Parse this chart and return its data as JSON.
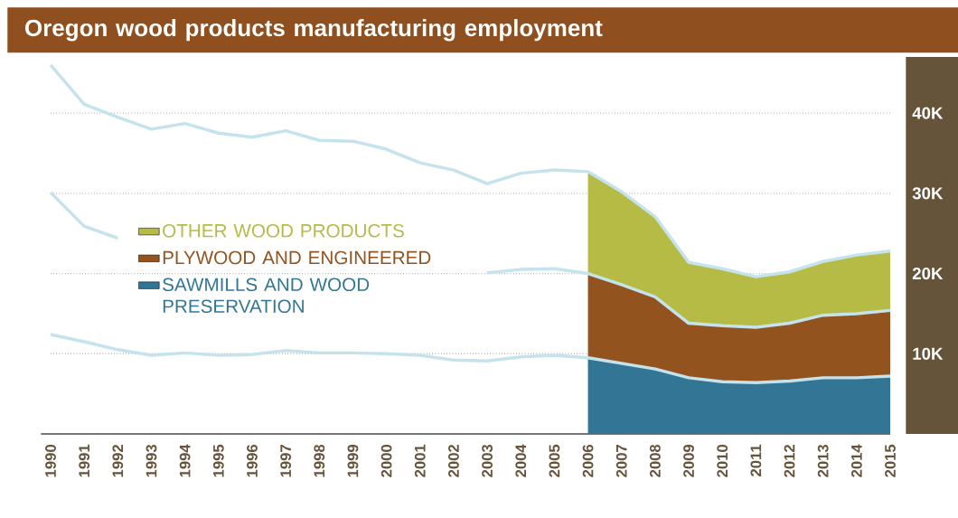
{
  "chart_data": {
    "type": "area",
    "title": "Oregon wood products manufacturing employment",
    "stacked": true,
    "x": [
      2006,
      2007,
      2008,
      2009,
      2010,
      2011,
      2012,
      2013,
      2014,
      2015
    ],
    "series": [
      {
        "name": "SAWMILLS AND WOOD PRESERVATION",
        "color": "#327595",
        "values": [
          9500,
          8800,
          8100,
          7000,
          6500,
          6400,
          6600,
          7000,
          7000,
          7200
        ]
      },
      {
        "name": "PLYWOOD AND ENGINEERED",
        "color": "#92531f",
        "values": [
          10500,
          9800,
          9000,
          6800,
          7000,
          6900,
          7200,
          7800,
          8000,
          8200
        ]
      },
      {
        "name": "OTHER WOOD PRODUCTS",
        "color": "#b5bb44",
        "values": [
          12700,
          11600,
          10000,
          7600,
          7100,
          6300,
          6400,
          6700,
          7300,
          7400
        ]
      },
      {
        "type": "line",
        "color": "#c5e3ec",
        "x": [
          1990,
          1991,
          1992,
          1993,
          1994,
          1995,
          1996,
          1997,
          1998,
          1999,
          2000,
          2001,
          2002,
          2003,
          2004,
          2005,
          2006,
          2007,
          2008,
          2009,
          2010,
          2011,
          2012,
          2013,
          2014,
          2015
        ],
        "values": [
          12400,
          11500,
          10500,
          9800,
          10100,
          9800,
          9900,
          10400,
          10100,
          10100,
          10000,
          9800,
          9200,
          9100,
          9600,
          9800,
          9500,
          8800,
          8100,
          7000,
          6500,
          6400,
          6600,
          7000,
          7000,
          7200
        ]
      },
      {
        "type": "line",
        "color": "#c5e3ec",
        "x": [
          1990,
          1991,
          1992,
          1993,
          1994,
          1995,
          1996,
          1997,
          1998,
          1999,
          2000,
          2001,
          2002,
          2003,
          2004,
          2005,
          2006,
          2007,
          2008,
          2009,
          2010,
          2011,
          2012,
          2013,
          2014,
          2015
        ],
        "values": [
          30100,
          25900,
          24400,
          null,
          null,
          null,
          null,
          null,
          null,
          null,
          null,
          null,
          null,
          20100,
          20500,
          20600,
          20000,
          18600,
          17100,
          13800,
          13500,
          13300,
          13800,
          14800,
          15000,
          15400
        ]
      },
      {
        "type": "line",
        "color": "#c5e3ec",
        "x": [
          1990,
          1991,
          1992,
          1993,
          1994,
          1995,
          1996,
          1997,
          1998,
          1999,
          2000,
          2001,
          2002,
          2003,
          2004,
          2005,
          2006,
          2007,
          2008,
          2009,
          2010,
          2011,
          2012,
          2013,
          2014,
          2015
        ],
        "values": [
          46000,
          41100,
          39500,
          38000,
          38700,
          37500,
          37000,
          37800,
          36600,
          36500,
          35500,
          33800,
          32900,
          31200,
          32500,
          32900,
          32700,
          30200,
          27100,
          21400,
          20600,
          19600,
          20200,
          21500,
          22300,
          22800
        ]
      }
    ],
    "xlim": [
      1990,
      2015
    ],
    "xticks": [
      1990,
      1991,
      1992,
      1993,
      1994,
      1995,
      1996,
      1997,
      1998,
      1999,
      2000,
      2001,
      2002,
      2003,
      2004,
      2005,
      2006,
      2007,
      2008,
      2009,
      2010,
      2011,
      2012,
      2013,
      2014,
      2015
    ],
    "ylim": [
      0,
      47000
    ],
    "yticks": [
      {
        "value": 10000,
        "label": "10K"
      },
      {
        "value": 20000,
        "label": "20K"
      },
      {
        "value": 30000,
        "label": "30K"
      },
      {
        "value": 40000,
        "label": "40K"
      }
    ],
    "grid": "y",
    "legend": "left"
  }
}
